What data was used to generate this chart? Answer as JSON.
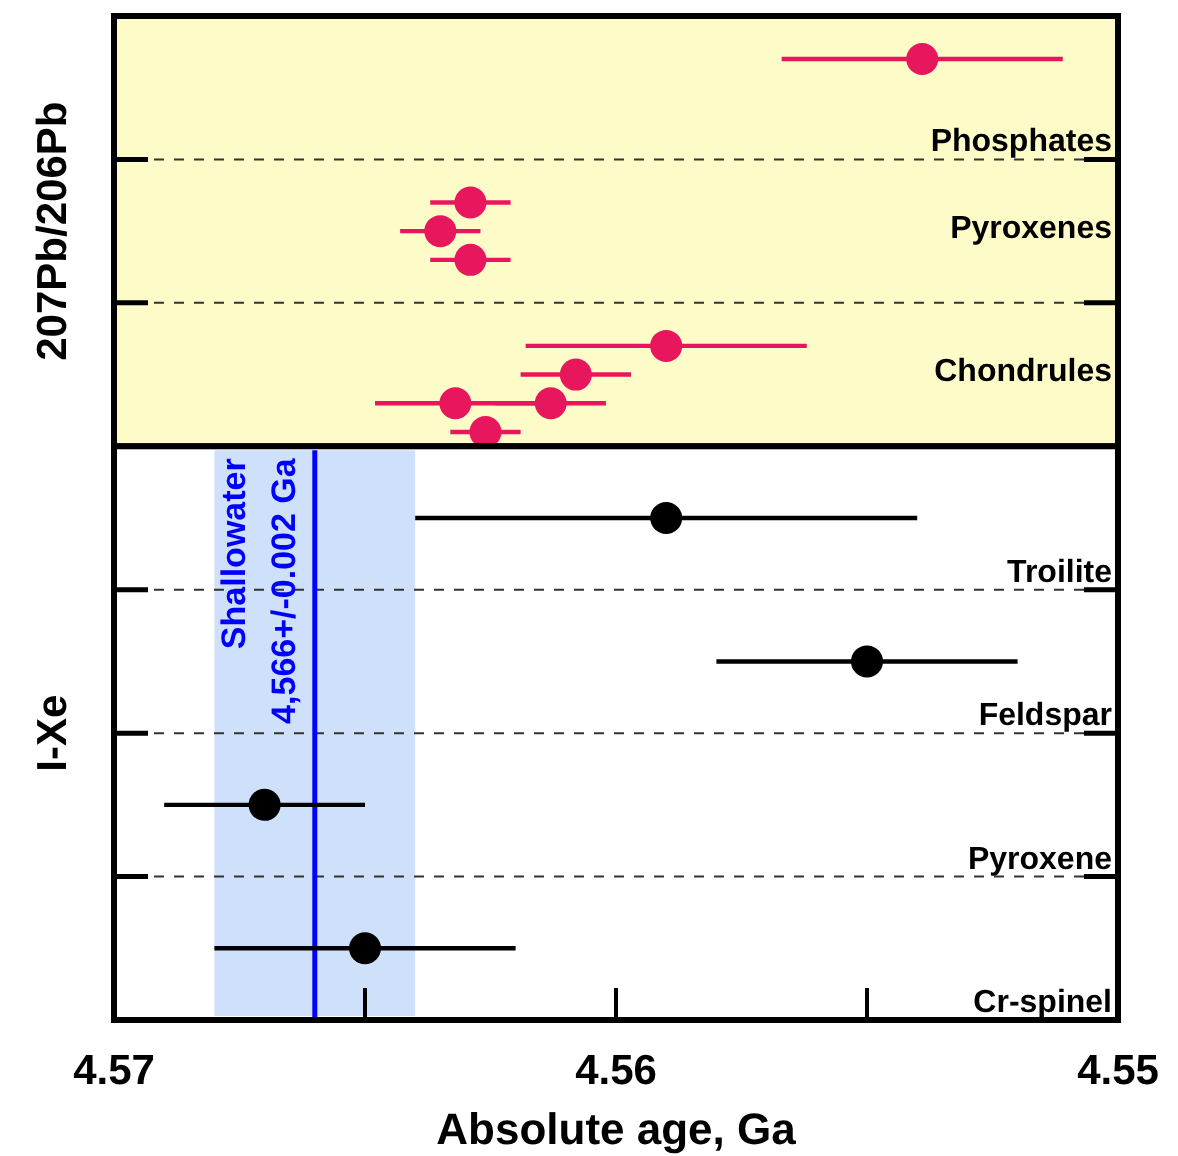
{
  "chart_data": [
    {
      "type": "scatter",
      "orientation": "horizontal",
      "ylabel": "207Pb/206Pb",
      "categories": [
        null,
        null,
        null,
        null,
        "Phosphates",
        null,
        null,
        "Pyroxenes",
        null,
        null,
        null,
        null,
        "Chondrules",
        null,
        null
      ],
      "xlim": [
        4.57,
        4.55
      ],
      "tick_labels": "y",
      "marker": "circle",
      "series": [
        {
          "color": "#e8175d",
          "values": [
            null,
            4.5539,
            null,
            null,
            null,
            null,
            4.5629,
            4.5635,
            4.5629,
            null,
            null,
            4.559,
            4.5608,
            4.5632,
            4.5626
          ],
          "errors": [
            null,
            0.0028,
            null,
            null,
            null,
            null,
            0.0008,
            0.0008,
            0.0008,
            null,
            null,
            0.0028,
            0.0011,
            0.0016,
            0.0007
          ]
        },
        {
          "color": "#e8175d",
          "values": [
            null,
            null,
            null,
            null,
            null,
            null,
            null,
            null,
            null,
            null,
            null,
            null,
            null,
            4.5613,
            null
          ],
          "errors": [
            null,
            null,
            null,
            null,
            null,
            null,
            null,
            null,
            null,
            null,
            null,
            null,
            null,
            0.0011,
            null
          ]
        }
      ]
    },
    {
      "type": "scatter",
      "orientation": "horizontal",
      "ylabel": "I-Xe",
      "xlabel": "Absolute age, Ga",
      "categories": [
        null,
        null,
        null,
        null,
        "Troilite",
        null,
        null,
        null,
        null,
        "Feldspar",
        null,
        null,
        null,
        null,
        "Pyroxene",
        null,
        null,
        null,
        null,
        "Cr-spinel"
      ],
      "xlim": [
        4.57,
        4.55
      ],
      "xticks": [
        4.57,
        {
          "value": 4.565,
          "label": null
        },
        4.56,
        {
          "value": 4.555,
          "label": null
        },
        4.55
      ],
      "marker": "circle",
      "ref_lines": [
        {
          "axis": "x",
          "value": 4.566,
          "label": "Shallowater 4,566+/-0.002 Ga",
          "color": "#0000ff"
        }
      ],
      "bands": [
        {
          "axis": "x",
          "from": 4.568,
          "to": 4.564,
          "color": "#cfe0fb"
        }
      ],
      "series": [
        {
          "color": "#000000",
          "values": [
            null,
            null,
            4.559,
            null,
            null,
            null,
            null,
            4.555,
            null,
            null,
            null,
            null,
            4.567,
            null,
            null,
            null,
            null,
            4.565,
            null,
            null
          ],
          "errors": [
            null,
            null,
            0.005,
            null,
            null,
            null,
            null,
            0.003,
            null,
            null,
            null,
            null,
            0.002,
            null,
            null,
            null,
            null,
            0.003,
            null,
            null
          ]
        }
      ]
    }
  ]
}
